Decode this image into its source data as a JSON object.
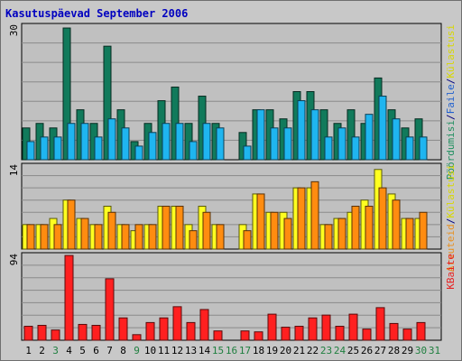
{
  "chart_data": {
    "title": "Kasutuspäevad September 2006",
    "type": "bar",
    "days": [
      "1",
      "2",
      "3",
      "4",
      "5",
      "6",
      "7",
      "8",
      "9",
      "10",
      "11",
      "12",
      "13",
      "14",
      "15",
      "16",
      "17",
      "18",
      "19",
      "20",
      "21",
      "22",
      "23",
      "24",
      "25",
      "26",
      "27",
      "28",
      "29",
      "30",
      "31"
    ],
    "day_colors": [
      "#000000",
      "#000000",
      "#1f7f3f",
      "#000000",
      "#000000",
      "#000000",
      "#000000",
      "#000000",
      "#1f7f3f",
      "#000000",
      "#000000",
      "#000000",
      "#000000",
      "#000000",
      "#1f7f3f",
      "#1f7f3f",
      "#1f7f3f",
      "#000000",
      "#000000",
      "#000000",
      "#000000",
      "#000000",
      "#1f7f3f",
      "#1f7f3f",
      "#000000",
      "#000000",
      "#000000",
      "#000000",
      "#000000",
      "#1f7f3f",
      "#1f7f3f"
    ],
    "panels": [
      {
        "max_label": "30",
        "ymax": 30,
        "legend": [
          {
            "text": "Pöördumisi",
            "color": "#1f8f5f"
          },
          {
            "text": "/",
            "color": "#000080"
          },
          {
            "text": "Faile",
            "color": "#1f5fcf"
          },
          {
            "text": "/",
            "color": "#000080"
          },
          {
            "text": "Külastusi",
            "color": "#d8d800"
          }
        ],
        "series": [
          {
            "name": "Pöördumisi",
            "color": "#117a5b",
            "values": [
              7,
              8,
              7,
              29,
              11,
              8,
              25,
              11,
              4,
              8,
              13,
              16,
              8,
              14,
              8,
              0,
              6,
              11,
              11,
              9,
              15,
              15,
              11,
              8,
              11,
              8,
              18,
              11,
              7,
              9,
              0
            ]
          },
          {
            "name": "Faile",
            "color": "#1fb5f0",
            "values": [
              4,
              5,
              5,
              8,
              8,
              5,
              9,
              7,
              3,
              6,
              8,
              8,
              4,
              8,
              7,
              0,
              3,
              11,
              7,
              7,
              13,
              11,
              5,
              7,
              5,
              10,
              14,
              9,
              5,
              5,
              0
            ]
          }
        ]
      },
      {
        "max_label": "14",
        "ymax": 14,
        "legend": [
          {
            "text": "Arvuteid",
            "color": "#e89020"
          },
          {
            "text": "/",
            "color": "#000080"
          },
          {
            "text": "Külastusi",
            "color": "#d8d800"
          }
        ],
        "series": [
          {
            "name": "Külastusi",
            "color": "#ffff20",
            "values": [
              4,
              4,
              5,
              8,
              5,
              4,
              7,
              4,
              3,
              4,
              7,
              7,
              4,
              7,
              4,
              0,
              4,
              9,
              6,
              6,
              10,
              10,
              4,
              5,
              6,
              8,
              13,
              9,
              5,
              5,
              0
            ]
          },
          {
            "name": "Arvuteid",
            "color": "#ff8c10",
            "values": [
              4,
              4,
              4,
              8,
              5,
              4,
              6,
              4,
              4,
              4,
              7,
              7,
              3,
              6,
              4,
              0,
              3,
              9,
              6,
              5,
              10,
              11,
              4,
              5,
              7,
              7,
              10,
              8,
              5,
              6,
              0
            ]
          }
        ]
      },
      {
        "max_label": "94",
        "ymax": 94,
        "legend": [
          {
            "text": "KBaite",
            "color": "#e82020"
          }
        ],
        "series": [
          {
            "name": "KBaite",
            "color": "#ff2020",
            "values": [
              15,
              16,
              11,
              91,
              17,
              16,
              66,
              24,
              6,
              19,
              24,
              36,
              19,
              33,
              10,
              0,
              10,
              9,
              28,
              14,
              15,
              24,
              27,
              15,
              28,
              12,
              35,
              18,
              12,
              19,
              0
            ]
          }
        ]
      }
    ]
  }
}
